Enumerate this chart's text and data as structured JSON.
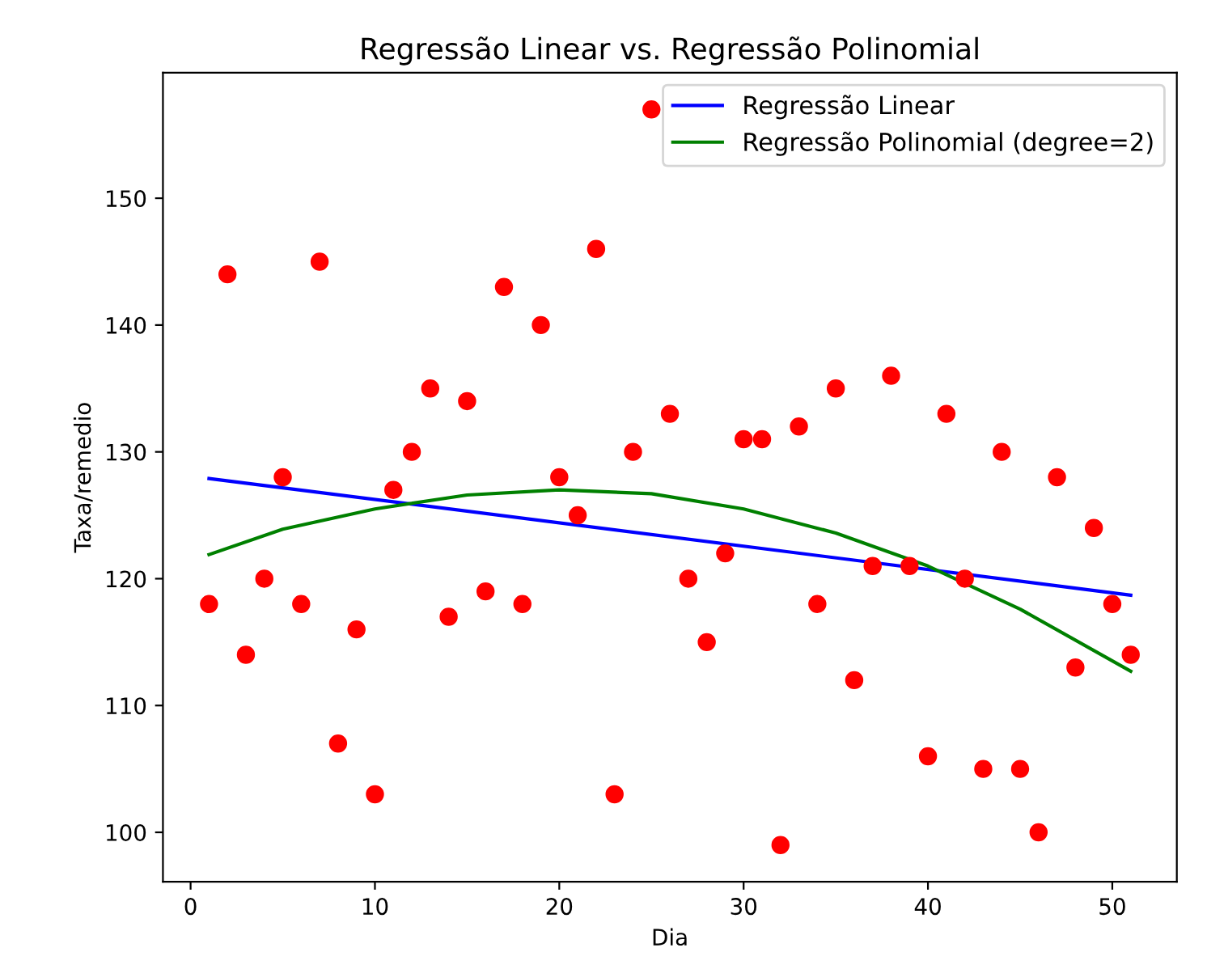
{
  "chart_data": {
    "type": "scatter",
    "title": "Regressão Linear vs. Regressão Polinomial",
    "xlabel": "Dia",
    "ylabel": "Taxa/remedio",
    "xlim": [
      -1.5,
      53.5
    ],
    "ylim": [
      96.1,
      159.9
    ],
    "xticks": [
      0,
      10,
      20,
      30,
      40,
      50
    ],
    "yticks": [
      100,
      110,
      120,
      130,
      140,
      150
    ],
    "grid": false,
    "legend": "top right",
    "marker": "circle",
    "x": [
      1,
      2,
      3,
      4,
      5,
      6,
      7,
      8,
      9,
      10,
      11,
      12,
      13,
      14,
      15,
      16,
      17,
      18,
      19,
      20,
      21,
      22,
      23,
      24,
      25,
      26,
      27,
      28,
      29,
      30,
      31,
      32,
      33,
      34,
      35,
      36,
      37,
      38,
      39,
      40,
      41,
      42,
      43,
      44,
      45,
      46,
      47,
      48,
      49,
      50,
      51
    ],
    "series": [
      {
        "color": "#ff0000",
        "values": [
          118,
          144,
          114,
          120,
          128,
          118,
          145,
          107,
          116,
          103,
          127,
          130,
          135,
          117,
          134,
          119,
          143,
          118,
          140,
          128,
          125,
          146,
          103,
          130,
          157,
          133,
          120,
          115,
          122,
          131,
          131,
          99,
          132,
          118,
          135,
          112,
          121,
          136,
          121,
          106,
          133,
          120,
          105,
          130,
          105,
          100,
          128,
          113,
          124,
          118,
          114
        ]
      },
      {
        "type": "line",
        "name": "Regressão Linear",
        "color": "#0000ff",
        "marker": "none",
        "x": [
          1,
          51
        ],
        "values": [
          127.9,
          118.7
        ]
      },
      {
        "type": "line",
        "name": "Regressão Polinomial (degree=2)",
        "color": "#008000",
        "marker": "none",
        "x": [
          1,
          5,
          10,
          15,
          20,
          25,
          30,
          35,
          40,
          45,
          51
        ],
        "values": [
          121.9,
          123.9,
          125.5,
          126.6,
          127.0,
          126.7,
          125.5,
          123.6,
          121.0,
          117.6,
          112.7
        ]
      }
    ]
  }
}
